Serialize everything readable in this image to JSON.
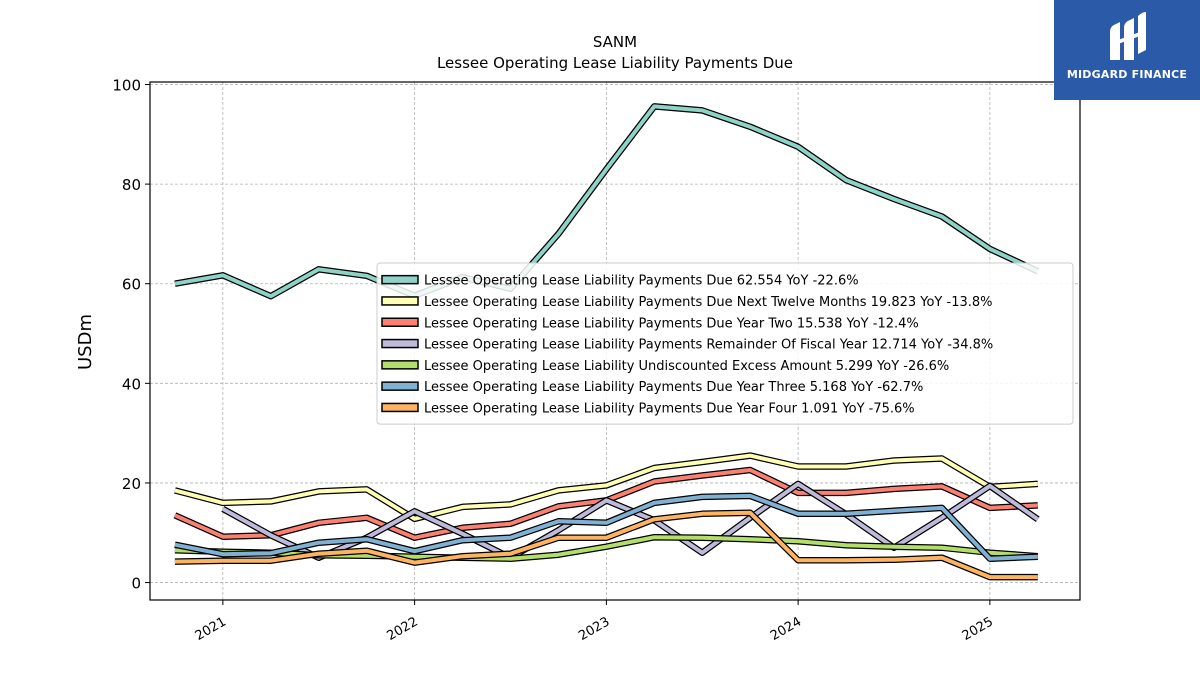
{
  "brand": {
    "name": "MIDGARD FINANCE",
    "bg_color": "#2b5aa8"
  },
  "chart_data": {
    "type": "line",
    "title": "SANM",
    "subtitle": "Lessee Operating Lease Liability Payments Due",
    "xlabel": "",
    "ylabel": "USDm",
    "ylim": [
      -3.5,
      100.5
    ],
    "yticks": [
      0,
      20,
      40,
      60,
      80,
      100
    ],
    "xlim": [
      2020.62,
      2025.47
    ],
    "xticks": [
      {
        "value": 2021,
        "label": "2021"
      },
      {
        "value": 2022,
        "label": "2022"
      },
      {
        "value": 2023,
        "label": "2023"
      },
      {
        "value": 2024,
        "label": "2024"
      },
      {
        "value": 2025,
        "label": "2025"
      }
    ],
    "grid": true,
    "legend_position": "center-right",
    "x": [
      2020.75,
      2021.0,
      2021.25,
      2021.5,
      2021.75,
      2022.0,
      2022.25,
      2022.5,
      2022.75,
      2023.0,
      2023.25,
      2023.5,
      2023.75,
      2024.0,
      2024.25,
      2024.5,
      2024.75,
      2025.0,
      2025.25
    ],
    "series": [
      {
        "name": "Lessee Operating Lease Liability Payments Due",
        "legend_label": "Lessee Operating Lease Liability Payments Due  62.554 YoY -22.6%",
        "color": "#8dd3c7",
        "values": [
          60.0,
          61.7,
          57.5,
          62.9,
          61.6,
          57.6,
          61.3,
          59.0,
          70.0,
          83.0,
          95.6,
          94.8,
          91.5,
          87.5,
          80.8,
          77.0,
          73.5,
          67.0,
          62.5
        ]
      },
      {
        "name": "Lessee Operating Lease Liability Payments Due Next Twelve Months",
        "legend_label": "Lessee Operating Lease Liability Payments Due Next Twelve Months  19.823 YoY -13.8%",
        "color": "#ffffb3",
        "values": [
          18.5,
          16.0,
          16.3,
          18.3,
          18.7,
          12.8,
          15.2,
          15.7,
          18.5,
          19.5,
          23.0,
          24.2,
          25.5,
          23.3,
          23.3,
          24.5,
          24.9,
          19.2,
          19.8
        ]
      },
      {
        "name": "Lessee Operating Lease Liability Payments Due Year Two",
        "legend_label": "Lessee Operating Lease Liability Payments Due Year Two  15.538 YoY -12.4%",
        "color": "#fb8072",
        "values": [
          13.5,
          9.2,
          9.5,
          12.0,
          13.0,
          9.0,
          11.0,
          11.8,
          15.3,
          16.5,
          20.3,
          21.5,
          22.6,
          18.0,
          18.0,
          18.8,
          19.3,
          15.0,
          15.5
        ]
      },
      {
        "name": "Lessee Operating Lease Liability Payments Remainder Of Fiscal Year",
        "legend_label": "Lessee Operating Lease Liability Payments Remainder Of Fiscal Year  12.714 YoY -34.8%",
        "color": "#bebada",
        "values": [
          null,
          14.8,
          9.5,
          5.0,
          9.0,
          14.3,
          9.8,
          5.0,
          10.5,
          16.5,
          12.5,
          6.0,
          13.0,
          19.8,
          13.7,
          7.0,
          13.0,
          19.4,
          12.7
        ]
      },
      {
        "name": "Lessee Operating Lease Liability Undiscounted Excess Amount",
        "legend_label": "Lessee Operating Lease Liability Undiscounted Excess Amount  5.299 YoY -26.6%",
        "color": "#b3de69",
        "values": [
          6.5,
          6.2,
          6.0,
          5.5,
          5.4,
          5.2,
          5.0,
          4.8,
          5.6,
          7.2,
          9.1,
          9.0,
          8.7,
          8.3,
          7.5,
          7.2,
          7.0,
          6.0,
          5.3
        ]
      },
      {
        "name": "Lessee Operating Lease Liability Payments Due Year Three",
        "legend_label": "Lessee Operating Lease Liability Payments Due Year Three  5.168 YoY -62.7%",
        "color": "#80b1d3",
        "values": [
          7.6,
          5.7,
          5.9,
          8.0,
          8.7,
          6.3,
          8.5,
          9.0,
          12.3,
          12.0,
          16.0,
          17.2,
          17.4,
          13.8,
          13.8,
          14.4,
          15.0,
          4.8,
          5.2
        ]
      },
      {
        "name": "Lessee Operating Lease Liability Payments Due Year Four",
        "legend_label": "Lessee Operating Lease Liability Payments Due Year Four  1.091 YoY -75.6%",
        "color": "#fdb462",
        "values": [
          4.2,
          4.4,
          4.4,
          5.8,
          6.4,
          4.0,
          5.3,
          5.8,
          9.0,
          9.0,
          12.7,
          13.8,
          14.0,
          4.5,
          4.5,
          4.6,
          5.0,
          1.1,
          1.1
        ]
      }
    ]
  }
}
